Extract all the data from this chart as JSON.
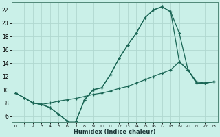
{
  "xlabel": "Humidex (Indice chaleur)",
  "bg_color": "#caf0e8",
  "grid_color": "#b0d8d0",
  "line_color": "#1a6655",
  "spine_color": "#508878",
  "xlim_min": -0.5,
  "xlim_max": 23.5,
  "ylim_min": 5.2,
  "ylim_max": 23.2,
  "xticks": [
    0,
    1,
    2,
    3,
    4,
    5,
    6,
    7,
    8,
    9,
    10,
    11,
    12,
    13,
    14,
    15,
    16,
    17,
    18,
    19,
    20,
    21,
    22,
    23
  ],
  "yticks": [
    6,
    8,
    10,
    12,
    14,
    16,
    18,
    20,
    22
  ],
  "line1_x": [
    0,
    1,
    2,
    3,
    4,
    5,
    6,
    7,
    8,
    9,
    10,
    11,
    12,
    13,
    14,
    15,
    16,
    17,
    18,
    19,
    20,
    21,
    22,
    23
  ],
  "line1_y": [
    9.5,
    8.8,
    8.0,
    7.8,
    7.3,
    6.3,
    5.3,
    5.3,
    8.5,
    10.0,
    10.3,
    12.3,
    14.7,
    16.7,
    18.5,
    20.8,
    22.0,
    22.5,
    21.7,
    18.5,
    13.0,
    11.0,
    11.0,
    11.2
  ],
  "line2_x": [
    0,
    1,
    2,
    3,
    4,
    5,
    6,
    7,
    8,
    9,
    10,
    11,
    12,
    13,
    14,
    15,
    16,
    17,
    18,
    19,
    20,
    21,
    22,
    23
  ],
  "line2_y": [
    9.5,
    8.8,
    8.0,
    7.8,
    8.0,
    8.3,
    8.5,
    8.7,
    9.0,
    9.3,
    9.5,
    9.8,
    10.2,
    10.5,
    11.0,
    11.5,
    12.0,
    12.5,
    13.0,
    14.2,
    13.0,
    11.2,
    11.0,
    11.2
  ],
  "line3_x": [
    0,
    1,
    2,
    3,
    4,
    5,
    6,
    7,
    8,
    9,
    10,
    11,
    12,
    13,
    14,
    15,
    16,
    17,
    18,
    19,
    20,
    21,
    22,
    23
  ],
  "line3_y": [
    9.5,
    8.8,
    8.0,
    7.8,
    7.3,
    6.3,
    5.3,
    5.3,
    8.5,
    10.0,
    10.3,
    12.3,
    14.7,
    16.7,
    18.5,
    20.8,
    22.0,
    22.5,
    21.7,
    14.2,
    13.0,
    11.0,
    11.0,
    11.2
  ]
}
